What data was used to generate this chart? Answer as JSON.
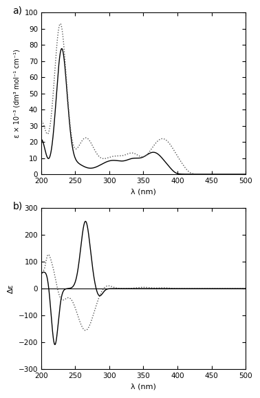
{
  "panel_a_label": "a)",
  "panel_b_label": "b)",
  "xlabel": "λ (nm)",
  "ylabel_a": "ε × 10⁻³ (dm³ mol⁻¹ cm⁻¹)",
  "ylabel_b": "Δε",
  "xlim": [
    200,
    500
  ],
  "ylim_a": [
    0,
    100
  ],
  "ylim_b": [
    -300,
    300
  ],
  "xticks": [
    200,
    250,
    300,
    350,
    400,
    450,
    500
  ],
  "yticks_a": [
    0,
    10,
    20,
    30,
    40,
    50,
    60,
    70,
    80,
    90,
    100
  ],
  "yticks_b": [
    -300,
    -200,
    -100,
    0,
    100,
    200,
    300
  ],
  "background_color": "#ffffff",
  "line_color_solid": "#000000",
  "line_color_dotted": "#555555"
}
